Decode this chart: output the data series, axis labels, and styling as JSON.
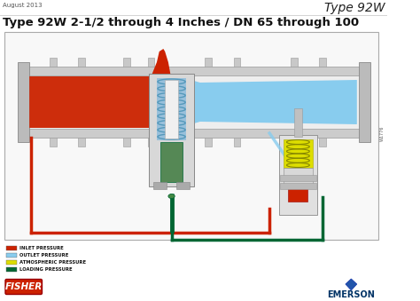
{
  "title_right": "Type 92W",
  "subtitle_date": "August 2013",
  "main_title": "Type 92W 2-1/2 through 4 Inches / DN 65 through 100",
  "bg_color": "#ffffff",
  "legend": [
    {
      "label": "INLET PRESSURE",
      "color": "#cc2200"
    },
    {
      "label": "OUTLET PRESSURE",
      "color": "#88ccee"
    },
    {
      "label": "ATMOSPHERIC PRESSURE",
      "color": "#dddd00"
    },
    {
      "label": "LOADING PRESSURE",
      "color": "#006633"
    }
  ],
  "fisher_text": "FISHER",
  "fisher_bg": "#cc2200",
  "fisher_text_color": "#ffffff",
  "emerson_text": "EMERSON",
  "emerson_color": "#003366",
  "inlet_color": "#cc2200",
  "outlet_color": "#88ccee",
  "atm_color": "#dddd00",
  "loading_color": "#006633",
  "pipe_wall": "#cccccc",
  "pipe_inner": "#e8e8e8",
  "valve_body": "#d8d8d8",
  "spring_blue": "#88bbdd",
  "spring_dark": "#5599bb"
}
